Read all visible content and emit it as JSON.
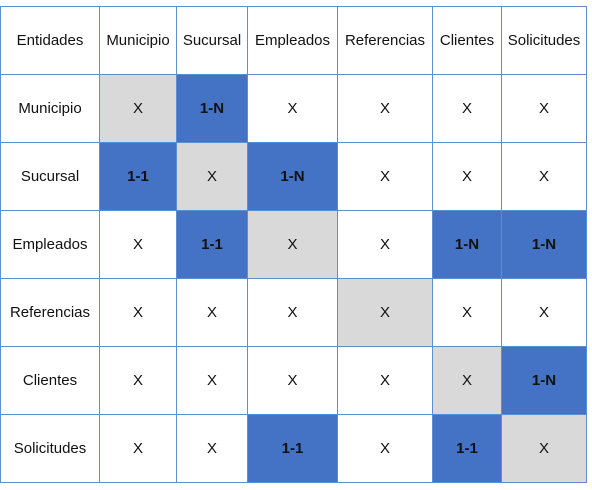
{
  "corner": "Entidades",
  "columns": [
    "Municipio",
    "Sucursal",
    "Empleados",
    "Referencias",
    "Clientes",
    "Solicitudes"
  ],
  "rows": [
    {
      "label": "Municipio",
      "cells": [
        "X",
        "1-N",
        "X",
        "X",
        "X",
        "X"
      ],
      "highlight": [
        false,
        true,
        false,
        false,
        false,
        false
      ]
    },
    {
      "label": "Sucursal",
      "cells": [
        "1-1",
        "X",
        "1-N",
        "X",
        "X",
        "X"
      ],
      "highlight": [
        true,
        false,
        true,
        false,
        false,
        false
      ]
    },
    {
      "label": "Empleados",
      "cells": [
        "X",
        "1-1",
        "X",
        "X",
        "1-N",
        "1-N"
      ],
      "highlight": [
        false,
        true,
        false,
        false,
        true,
        true
      ]
    },
    {
      "label": "Referencias",
      "cells": [
        "X",
        "X",
        "X",
        "X",
        "X",
        "X"
      ],
      "highlight": [
        false,
        false,
        false,
        false,
        false,
        false
      ]
    },
    {
      "label": "Clientes",
      "cells": [
        "X",
        "X",
        "X",
        "X",
        "X",
        "1-N"
      ],
      "highlight": [
        false,
        false,
        false,
        false,
        false,
        true
      ]
    },
    {
      "label": "Solicitudes",
      "cells": [
        "X",
        "X",
        "1-1",
        "X",
        "1-1",
        "X"
      ],
      "highlight": [
        false,
        false,
        true,
        false,
        true,
        false
      ]
    }
  ],
  "colors": {
    "grid_border": "#5b8fd0",
    "diagonal_fill": "#d9d9d9",
    "relation_fill": "#4472c4"
  }
}
